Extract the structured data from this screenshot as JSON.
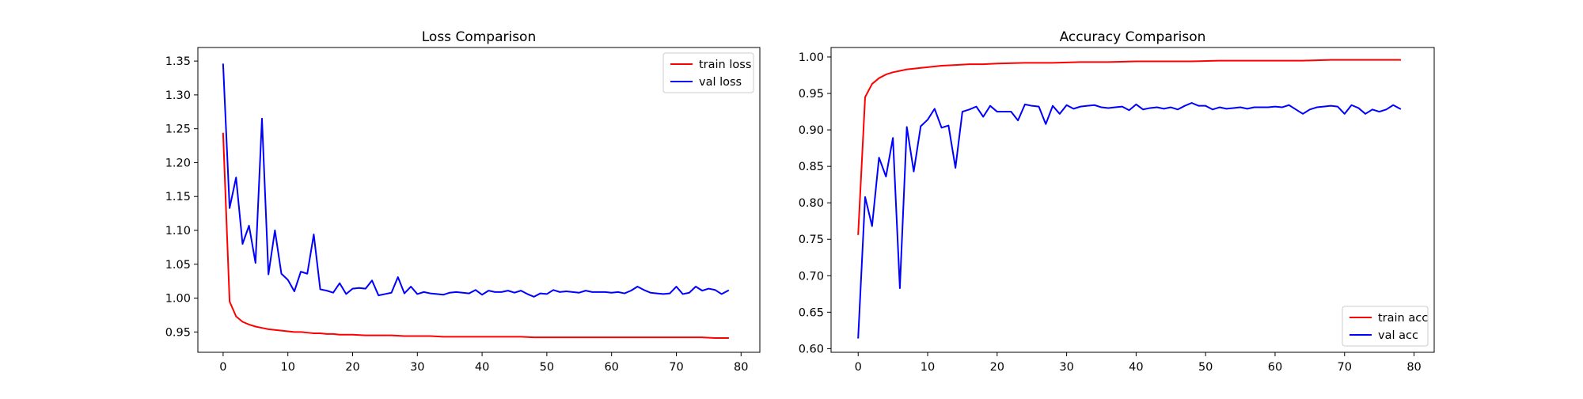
{
  "chart_data": [
    {
      "type": "line",
      "title": "Loss Comparison",
      "xlabel": "",
      "ylabel": "",
      "xlim": [
        -3.9,
        82.9
      ],
      "ylim": [
        0.92,
        1.37
      ],
      "xticks": [
        0,
        10,
        20,
        30,
        40,
        50,
        60,
        70,
        80
      ],
      "yticks": [
        0.95,
        1.0,
        1.05,
        1.1,
        1.15,
        1.2,
        1.25,
        1.3,
        1.35
      ],
      "ytick_decimals": 2,
      "legend_position": "top-right",
      "grid": false,
      "series": [
        {
          "name": "train loss",
          "color": "#ff0000",
          "x": [
            0,
            1,
            2,
            3,
            4,
            5,
            6,
            7,
            8,
            9,
            10,
            11,
            12,
            13,
            14,
            15,
            16,
            17,
            18,
            19,
            20,
            22,
            24,
            26,
            28,
            30,
            32,
            34,
            36,
            38,
            40,
            42,
            44,
            46,
            48,
            50,
            52,
            54,
            56,
            58,
            60,
            62,
            64,
            66,
            68,
            70,
            72,
            74,
            76,
            78
          ],
          "values": [
            1.243,
            0.995,
            0.973,
            0.965,
            0.961,
            0.958,
            0.956,
            0.954,
            0.953,
            0.952,
            0.951,
            0.95,
            0.95,
            0.949,
            0.948,
            0.948,
            0.947,
            0.947,
            0.946,
            0.946,
            0.946,
            0.945,
            0.945,
            0.945,
            0.944,
            0.944,
            0.944,
            0.943,
            0.943,
            0.943,
            0.943,
            0.943,
            0.943,
            0.943,
            0.942,
            0.942,
            0.942,
            0.942,
            0.942,
            0.942,
            0.942,
            0.942,
            0.942,
            0.942,
            0.942,
            0.942,
            0.942,
            0.942,
            0.941,
            0.941
          ]
        },
        {
          "name": "val loss",
          "color": "#0000ff",
          "x": [
            0,
            1,
            2,
            3,
            4,
            5,
            6,
            7,
            8,
            9,
            10,
            11,
            12,
            13,
            14,
            15,
            16,
            17,
            18,
            19,
            20,
            21,
            22,
            23,
            24,
            25,
            26,
            27,
            28,
            29,
            30,
            31,
            32,
            33,
            34,
            35,
            36,
            37,
            38,
            39,
            40,
            41,
            42,
            43,
            44,
            45,
            46,
            47,
            48,
            49,
            50,
            51,
            52,
            53,
            54,
            55,
            56,
            57,
            58,
            59,
            60,
            61,
            62,
            63,
            64,
            65,
            66,
            67,
            68,
            69,
            70,
            71,
            72,
            73,
            74,
            75,
            76,
            77,
            78
          ],
          "values": [
            1.345,
            1.133,
            1.178,
            1.08,
            1.107,
            1.052,
            1.265,
            1.035,
            1.1,
            1.036,
            1.027,
            1.01,
            1.039,
            1.036,
            1.094,
            1.013,
            1.011,
            1.008,
            1.022,
            1.006,
            1.014,
            1.015,
            1.014,
            1.026,
            1.004,
            1.006,
            1.008,
            1.031,
            1.007,
            1.017,
            1.006,
            1.009,
            1.007,
            1.006,
            1.005,
            1.008,
            1.009,
            1.008,
            1.007,
            1.012,
            1.005,
            1.011,
            1.009,
            1.009,
            1.011,
            1.008,
            1.011,
            1.006,
            1.002,
            1.007,
            1.006,
            1.012,
            1.009,
            1.01,
            1.009,
            1.008,
            1.011,
            1.009,
            1.009,
            1.009,
            1.008,
            1.009,
            1.007,
            1.011,
            1.017,
            1.012,
            1.008,
            1.007,
            1.006,
            1.007,
            1.017,
            1.006,
            1.008,
            1.017,
            1.011,
            1.014,
            1.012,
            1.006,
            1.011
          ]
        }
      ]
    },
    {
      "type": "line",
      "title": "Accuracy Comparison",
      "xlabel": "",
      "ylabel": "",
      "xlim": [
        -3.9,
        82.9
      ],
      "ylim": [
        0.595,
        1.013
      ],
      "xticks": [
        0,
        10,
        20,
        30,
        40,
        50,
        60,
        70,
        80
      ],
      "yticks": [
        0.6,
        0.65,
        0.7,
        0.75,
        0.8,
        0.85,
        0.9,
        0.95,
        1.0
      ],
      "ytick_decimals": 2,
      "legend_position": "bottom-right",
      "grid": false,
      "series": [
        {
          "name": "train acc",
          "color": "#ff0000",
          "x": [
            0,
            1,
            2,
            3,
            4,
            5,
            6,
            7,
            8,
            9,
            10,
            12,
            14,
            16,
            18,
            20,
            24,
            28,
            32,
            36,
            40,
            44,
            48,
            52,
            56,
            60,
            64,
            68,
            72,
            76,
            78
          ],
          "values": [
            0.757,
            0.945,
            0.963,
            0.971,
            0.976,
            0.979,
            0.981,
            0.983,
            0.984,
            0.985,
            0.986,
            0.988,
            0.989,
            0.99,
            0.99,
            0.991,
            0.992,
            0.992,
            0.993,
            0.993,
            0.994,
            0.994,
            0.994,
            0.995,
            0.995,
            0.995,
            0.995,
            0.996,
            0.996,
            0.996,
            0.996
          ]
        },
        {
          "name": "val acc",
          "color": "#0000ff",
          "x": [
            0,
            1,
            2,
            3,
            4,
            5,
            6,
            7,
            8,
            9,
            10,
            11,
            12,
            13,
            14,
            15,
            16,
            17,
            18,
            19,
            20,
            21,
            22,
            23,
            24,
            25,
            26,
            27,
            28,
            29,
            30,
            31,
            32,
            33,
            34,
            35,
            36,
            37,
            38,
            39,
            40,
            41,
            42,
            43,
            44,
            45,
            46,
            47,
            48,
            49,
            50,
            51,
            52,
            53,
            54,
            55,
            56,
            57,
            58,
            59,
            60,
            61,
            62,
            63,
            64,
            65,
            66,
            67,
            68,
            69,
            70,
            71,
            72,
            73,
            74,
            75,
            76,
            77,
            78
          ],
          "values": [
            0.615,
            0.808,
            0.768,
            0.862,
            0.836,
            0.889,
            0.683,
            0.904,
            0.843,
            0.905,
            0.914,
            0.929,
            0.903,
            0.906,
            0.848,
            0.925,
            0.928,
            0.932,
            0.918,
            0.933,
            0.925,
            0.925,
            0.925,
            0.913,
            0.935,
            0.933,
            0.932,
            0.908,
            0.933,
            0.922,
            0.934,
            0.929,
            0.932,
            0.933,
            0.934,
            0.931,
            0.93,
            0.931,
            0.932,
            0.927,
            0.935,
            0.928,
            0.93,
            0.931,
            0.929,
            0.931,
            0.928,
            0.933,
            0.937,
            0.933,
            0.933,
            0.928,
            0.931,
            0.929,
            0.93,
            0.931,
            0.929,
            0.931,
            0.931,
            0.931,
            0.932,
            0.931,
            0.934,
            0.928,
            0.922,
            0.928,
            0.931,
            0.932,
            0.933,
            0.932,
            0.922,
            0.934,
            0.93,
            0.922,
            0.928,
            0.925,
            0.928,
            0.934,
            0.929
          ]
        }
      ]
    }
  ]
}
